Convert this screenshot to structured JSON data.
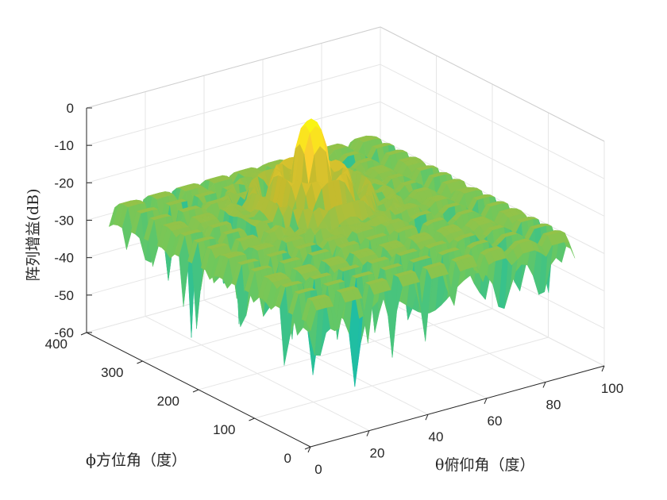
{
  "chart_data": {
    "type": "surface",
    "title": "",
    "xlabel": "θ俯仰角（度）",
    "ylabel": "ϕ方位角（度）",
    "zlabel": "阵列增益(dB)",
    "xlim": [
      0,
      100
    ],
    "ylim": [
      0,
      400
    ],
    "zlim": [
      -60,
      0
    ],
    "x_ticks": [
      0,
      20,
      40,
      60,
      80,
      100
    ],
    "y_ticks": [
      0,
      100,
      200,
      300,
      400
    ],
    "z_ticks": [
      0,
      -10,
      -20,
      -30,
      -40,
      -50,
      -60
    ],
    "grid": true,
    "colormap": "parula",
    "x_range_data": [
      0,
      90
    ],
    "y_range_data": [
      0,
      360
    ],
    "main_lobe": {
      "theta": 45,
      "phi": 235,
      "gain_db": 0
    },
    "sidelobe_floor_db": -20,
    "null_depth_db": -60
  },
  "colors": {
    "axis": "#262626",
    "grid": "#e6e6e6",
    "colormap_stops": [
      "#3e26a8",
      "#3075ef",
      "#17a9d2",
      "#20bfa0",
      "#6fc85c",
      "#c5bb2d",
      "#fbcf2e",
      "#f9fb0e"
    ]
  }
}
